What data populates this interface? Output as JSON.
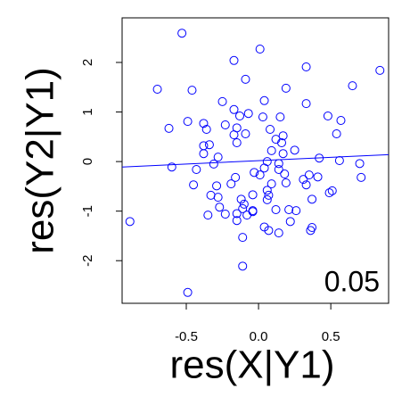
{
  "chart_data": {
    "type": "scatter",
    "x": [
      -0.53,
      0.01,
      -0.7,
      -0.46,
      -0.17,
      0.33,
      0.84,
      -0.09,
      0.65,
      0.19,
      -0.25,
      0.04,
      -0.17,
      -0.07,
      -0.13,
      0.33,
      0.03,
      -0.49,
      -0.38,
      -0.23,
      0.48,
      0.57,
      0.15,
      -0.62,
      -0.36,
      -0.15,
      -0.17,
      -0.09,
      0.08,
      0.54,
      0.12,
      0.17,
      0.16,
      -0.38,
      -0.34,
      -0.38,
      -0.28,
      -0.15,
      0.09,
      0.25,
      0.17,
      0.42,
      0.56,
      -0.6,
      -0.43,
      -0.31,
      0.06,
      0.14,
      0.04,
      -0.03,
      0.01,
      0.14,
      0.18,
      0.35,
      0.31,
      -0.16,
      0.09,
      0.19,
      0.06,
      -0.45,
      -0.29,
      -0.19,
      0.41,
      0.33,
      0.51,
      0.71,
      -0.33,
      -0.28,
      -0.27,
      -0.04,
      0.06,
      0.07,
      0.21,
      0.49,
      0.37,
      -0.12,
      -0.1,
      -0.35,
      -0.23,
      -0.15,
      -0.11,
      -0.04,
      -0.04,
      0.12,
      0.26,
      -0.15,
      -0.08,
      -0.11,
      0.04,
      0.07,
      0.14,
      0.22,
      0.37,
      0.36,
      -0.89,
      -0.11,
      -0.49,
      0.7
    ],
    "y": [
      2.59,
      2.27,
      1.46,
      1.44,
      2.04,
      1.91,
      1.84,
      1.66,
      1.53,
      1.48,
      1.21,
      1.23,
      1.05,
      0.97,
      0.92,
      1.17,
      0.9,
      0.81,
      0.77,
      0.74,
      0.92,
      0.83,
      0.9,
      0.67,
      0.65,
      0.68,
      0.54,
      0.56,
      0.65,
      0.56,
      0.45,
      0.52,
      0.38,
      0.32,
      0.34,
      0.16,
      0.09,
      0.38,
      0.22,
      0.23,
      0.16,
      0.07,
      0.02,
      -0.11,
      -0.16,
      -0.05,
      0.0,
      -0.04,
      -0.13,
      -0.22,
      -0.27,
      -0.16,
      -0.25,
      -0.27,
      -0.36,
      -0.32,
      -0.45,
      -0.43,
      -0.58,
      -0.47,
      -0.49,
      -0.45,
      -0.31,
      -0.47,
      -0.59,
      -0.32,
      -0.68,
      -0.72,
      -0.92,
      -0.67,
      -0.77,
      -0.68,
      -0.97,
      -0.63,
      -0.76,
      -0.76,
      -0.86,
      -1.08,
      -1.06,
      -1.05,
      -0.95,
      -0.99,
      -1.01,
      -0.97,
      -0.99,
      -1.19,
      -1.08,
      -1.53,
      -1.32,
      -1.39,
      -1.44,
      -1.21,
      -1.33,
      -1.39,
      -1.21,
      -2.11,
      -2.64,
      -0.04
    ],
    "color": "#0000ff",
    "fit": {
      "x": [
        -0.944,
        0.9
      ],
      "y": [
        -0.11,
        0.14
      ]
    },
    "annotation": "0.05",
    "xlabel": "res(X|Y1)",
    "ylabel": "res(Y2|Y1)",
    "xlim": [
      -0.944,
      0.9
    ],
    "ylim": [
      -2.86,
      2.9
    ],
    "xticks": [
      -0.5,
      {
        "value": 0,
        "label": "0.0"
      },
      0.5
    ],
    "yticks": [
      -2,
      -1,
      0,
      1,
      2
    ]
  }
}
